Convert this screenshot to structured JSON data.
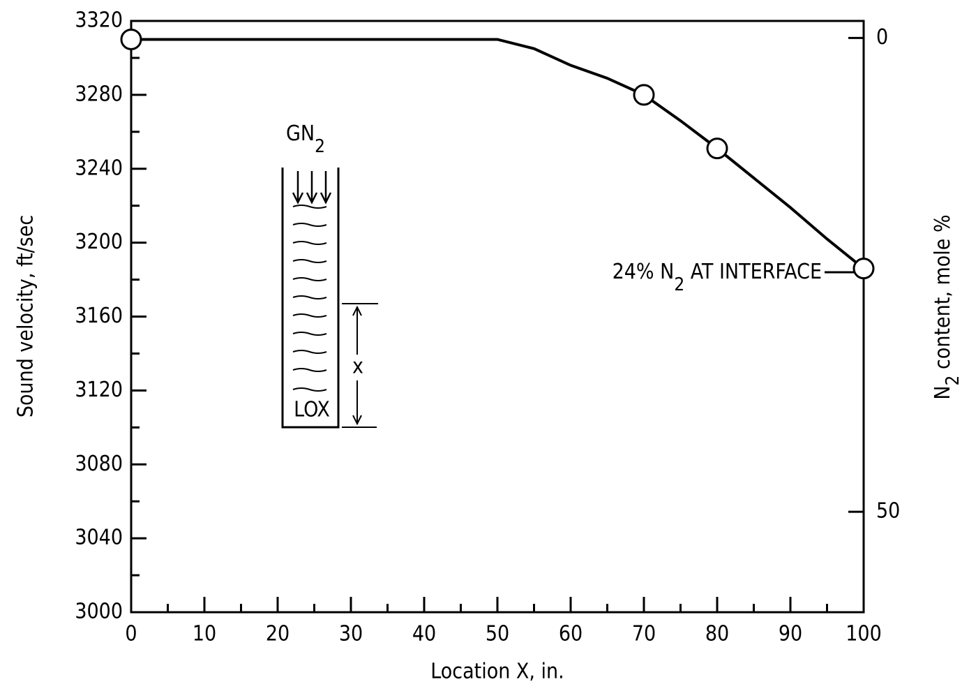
{
  "chart_data": {
    "type": "line",
    "x_label": "Location X, in.",
    "y_label": "Sound velocity, ft/sec",
    "y2_label": [
      "N",
      "2",
      " content, mole %"
    ],
    "points": {
      "x": [
        0,
        70,
        80,
        100
      ],
      "values": [
        3310,
        3280,
        3251,
        3186
      ]
    },
    "curve": {
      "x": [
        0,
        50,
        55,
        60,
        65,
        70,
        75,
        80,
        85,
        90,
        95,
        100
      ],
      "values": [
        3310,
        3310,
        3305,
        3296,
        3289,
        3280,
        3266,
        3251,
        3235,
        3219,
        3202,
        3186
      ]
    },
    "color": "#000000",
    "xlim": [
      0,
      100
    ],
    "xticks": [
      0,
      10,
      20,
      30,
      40,
      50,
      60,
      70,
      80,
      90,
      100
    ],
    "xminorticks": [
      5,
      15,
      25,
      35,
      45,
      55,
      65,
      75,
      85,
      95
    ],
    "ylim": [
      3000,
      3320
    ],
    "yticks": [
      3000,
      3040,
      3080,
      3120,
      3160,
      3200,
      3240,
      3280,
      3320
    ],
    "yminorticks": [
      3020,
      3060,
      3100,
      3140,
      3180,
      3220,
      3260,
      3300
    ],
    "y2lim": [
      60.6,
      -1.8
    ],
    "y2ticks": [
      0,
      50
    ],
    "annotation": [
      "24% N",
      "2",
      " AT INTERFACE"
    ],
    "inset": {
      "gas": [
        "GN",
        "2"
      ],
      "liquid": "LOX",
      "dimension": "x"
    }
  }
}
